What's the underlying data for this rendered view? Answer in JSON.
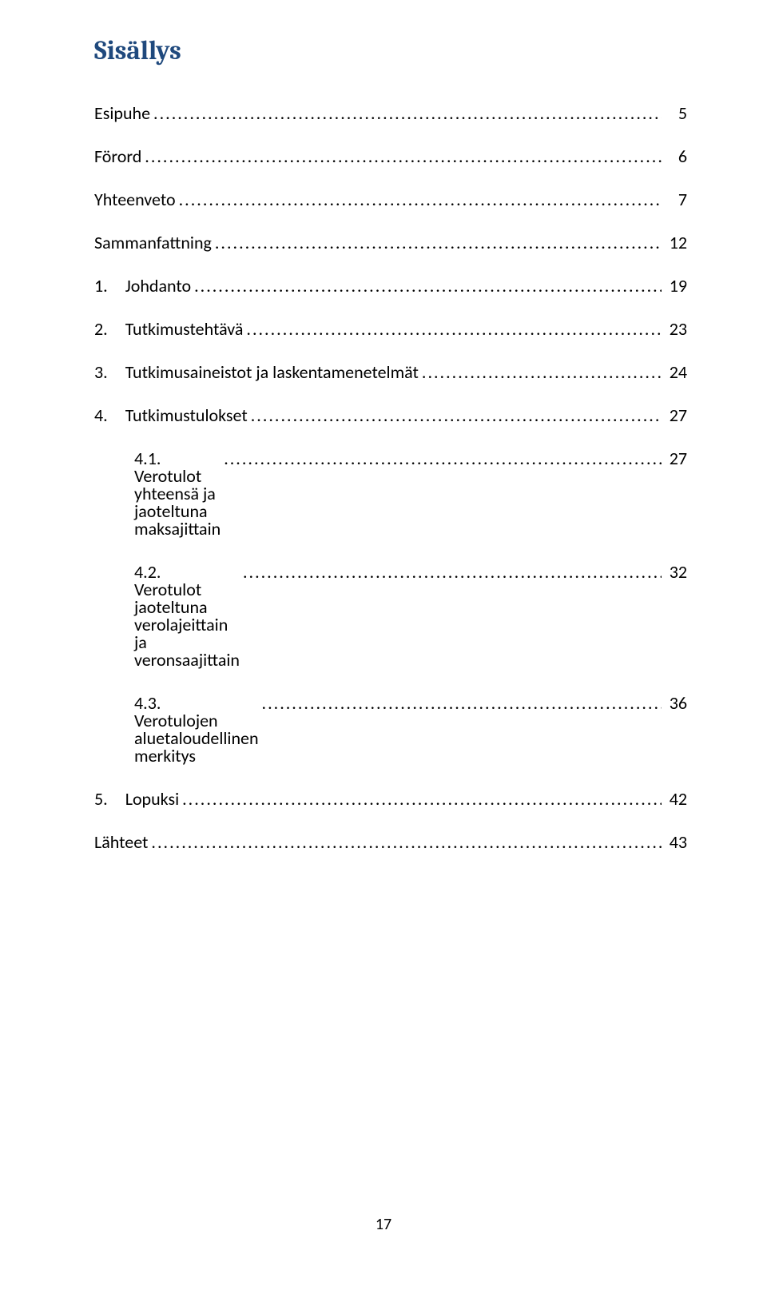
{
  "heading": "Sisällys",
  "leader_char": ".",
  "page_number": "17",
  "toc": [
    {
      "label": "Esipuhe",
      "page": "5",
      "indent": 0
    },
    {
      "label": "Förord",
      "page": "6",
      "indent": 0
    },
    {
      "label": "Yhteenveto",
      "page": "7",
      "indent": 0
    },
    {
      "label": "Sammanfattning",
      "page": "12",
      "indent": 0
    },
    {
      "label": "1. Johdanto",
      "page": "19",
      "indent": 0
    },
    {
      "label": "2. Tutkimustehtävä",
      "page": "23",
      "indent": 0
    },
    {
      "label": "3. Tutkimusaineistot ja laskentamenetelmät",
      "page": "24",
      "indent": 0
    },
    {
      "label": "4. Tutkimustulokset",
      "page": "27",
      "indent": 0
    },
    {
      "label": "4.1. Verotulot yhteensä ja jaoteltuna maksajittain",
      "page": "27",
      "indent": 1
    },
    {
      "label": "4.2. Verotulot jaoteltuna verolajeittain ja veronsaajittain",
      "page": "32",
      "indent": 1
    },
    {
      "label": "4.3. Verotulojen aluetaloudellinen merkitys",
      "page": "36",
      "indent": 1
    },
    {
      "label": "5. Lopuksi",
      "page": "42",
      "indent": 0
    },
    {
      "label": "Lähteet",
      "page": "43",
      "indent": 0
    }
  ]
}
